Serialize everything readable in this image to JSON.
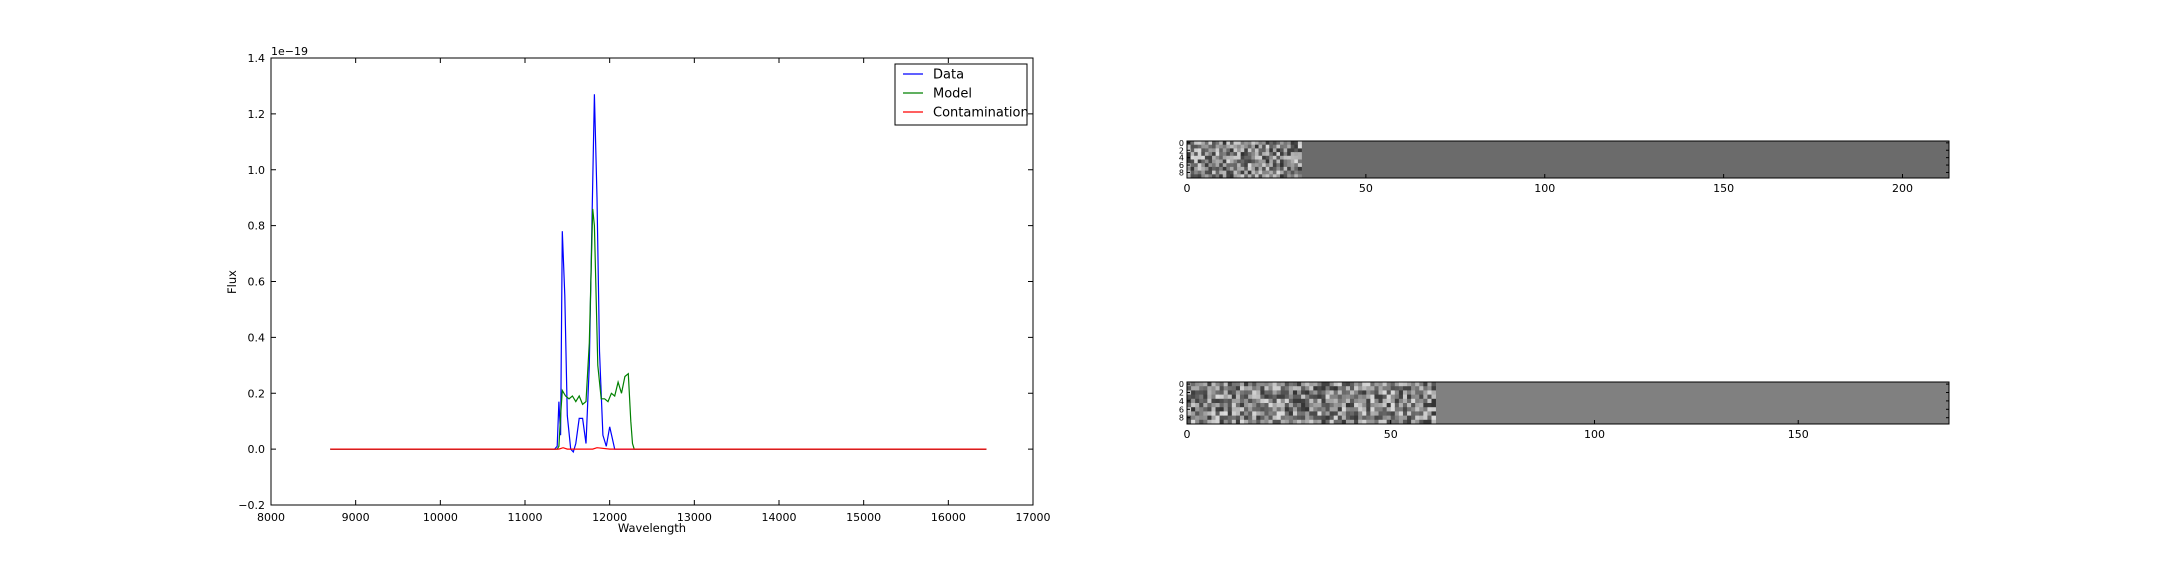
{
  "chart_data": [
    {
      "type": "line",
      "title": "",
      "xlabel": "Wavelength",
      "ylabel": "Flux",
      "offset_text": "1e−19",
      "xlim": [
        8000,
        17000
      ],
      "ylim": [
        -0.2,
        1.4
      ],
      "xticks": [
        8000,
        9000,
        10000,
        11000,
        12000,
        13000,
        14000,
        15000,
        16000,
        17000
      ],
      "yticks": [
        -0.2,
        0.0,
        0.2,
        0.4,
        0.6,
        0.8,
        1.0,
        1.2,
        1.4
      ],
      "ytick_labels": [
        "−0.2",
        "0.0",
        "0.2",
        "0.4",
        "0.6",
        "0.8",
        "1.0",
        "1.2",
        "1.4"
      ],
      "grid": false,
      "legend": "top-right",
      "series": [
        {
          "name": "Data",
          "color": "#0000ff",
          "x": [
            8700,
            11300,
            11350,
            11380,
            11400,
            11420,
            11440,
            11470,
            11500,
            11540,
            11570,
            11600,
            11640,
            11680,
            11720,
            11760,
            11790,
            11820,
            11850,
            11880,
            11920,
            11960,
            12000,
            12030,
            12060,
            12100,
            12200,
            12300,
            16450
          ],
          "y": [
            0.0,
            0.0,
            0.0,
            0.01,
            0.17,
            0.05,
            0.78,
            0.55,
            0.12,
            0.0,
            -0.01,
            0.02,
            0.11,
            0.11,
            0.02,
            0.3,
            0.8,
            1.27,
            0.9,
            0.35,
            0.05,
            0.01,
            0.08,
            0.04,
            0.0,
            0.0,
            0.0,
            0.0,
            0.0
          ]
        },
        {
          "name": "Model",
          "color": "#008000",
          "x": [
            8700,
            11300,
            11380,
            11400,
            11420,
            11440,
            11480,
            11520,
            11560,
            11600,
            11640,
            11680,
            11720,
            11760,
            11800,
            11820,
            11860,
            11900,
            11940,
            11980,
            12020,
            12060,
            12100,
            12140,
            12180,
            12220,
            12250,
            12270,
            12290,
            16450
          ],
          "y": [
            0.0,
            0.0,
            0.0,
            0.01,
            0.12,
            0.21,
            0.19,
            0.18,
            0.19,
            0.17,
            0.19,
            0.16,
            0.17,
            0.38,
            0.86,
            0.8,
            0.3,
            0.18,
            0.18,
            0.17,
            0.2,
            0.19,
            0.24,
            0.2,
            0.26,
            0.27,
            0.1,
            0.02,
            0.0,
            0.0
          ]
        },
        {
          "name": "Contamination",
          "color": "#ff0000",
          "x": [
            8700,
            11400,
            11450,
            11500,
            11800,
            11850,
            12000,
            16450
          ],
          "y": [
            0.0,
            0.0,
            0.005,
            0.0,
            0.0,
            0.005,
            0.0,
            0.0
          ]
        }
      ]
    },
    {
      "type": "heatmap",
      "xlim": [
        0,
        213
      ],
      "xticks": [
        0,
        50,
        100,
        150,
        200
      ],
      "yticks": [
        0,
        2,
        4,
        6,
        8
      ],
      "colormap": "gray",
      "textured_columns": [
        0,
        32
      ],
      "background_value": 0.42
    },
    {
      "type": "heatmap",
      "xlim": [
        0,
        187
      ],
      "xticks": [
        0,
        50,
        100,
        150
      ],
      "yticks": [
        0,
        2,
        4,
        6,
        8
      ],
      "colormap": "gray",
      "textured_columns": [
        0,
        61
      ],
      "background_value": 0.5
    }
  ]
}
